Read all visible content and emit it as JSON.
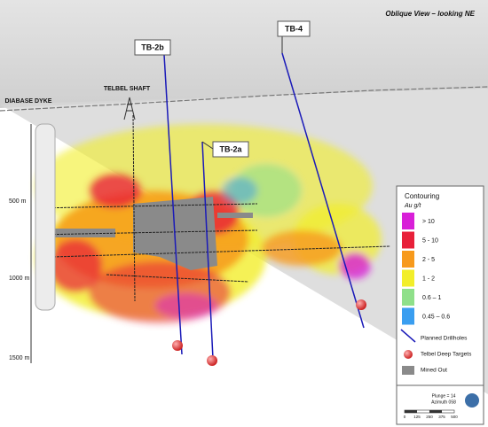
{
  "header": {
    "title": "Oblique View – looking NE"
  },
  "labels": {
    "drillholes": [
      "TB-2b",
      "TB-4",
      "TB-2a"
    ],
    "shaft": "TELBEL SHAFT",
    "dyke": "DIABASE DYKE"
  },
  "depth_scale": [
    "500 m",
    "1000 m",
    "1500 m"
  ],
  "legend": {
    "title": "Contouring",
    "unit": "Au g/t",
    "items": [
      {
        "label": "> 10",
        "color": "#d81fd8"
      },
      {
        "label": "5 - 10",
        "color": "#e8203a"
      },
      {
        "label": "2 - 5",
        "color": "#f79a1c"
      },
      {
        "label": "1 - 2",
        "color": "#f2ee2a"
      },
      {
        "label": "0.6 – 1",
        "color": "#8fe08a"
      },
      {
        "label": "0.45 – 0.6",
        "color": "#3a9ef0"
      }
    ],
    "symbols": [
      "Planned Drillholes",
      "Telbel Deep Targets",
      "Mined Out"
    ]
  },
  "orientation": {
    "plunge": "Plunge = 14",
    "azimuth": "Azimuth 058",
    "scale": [
      "0",
      "125",
      "250",
      "375",
      "500"
    ]
  }
}
